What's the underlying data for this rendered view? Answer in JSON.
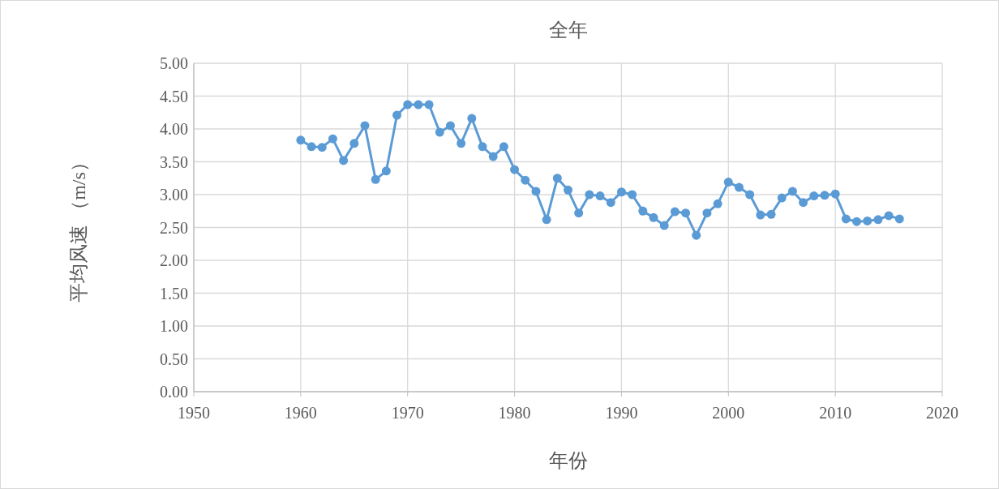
{
  "chart_data": {
    "type": "line",
    "title": "全年",
    "xlabel": "年份",
    "ylabel": "平均风速 （m/s）",
    "x": [
      1960,
      1961,
      1962,
      1963,
      1964,
      1965,
      1966,
      1967,
      1968,
      1969,
      1970,
      1971,
      1972,
      1973,
      1974,
      1975,
      1976,
      1977,
      1978,
      1979,
      1980,
      1981,
      1982,
      1983,
      1984,
      1985,
      1986,
      1987,
      1988,
      1989,
      1990,
      1991,
      1992,
      1993,
      1994,
      1995,
      1996,
      1997,
      1998,
      1999,
      2000,
      2001,
      2002,
      2003,
      2004,
      2005,
      2006,
      2007,
      2008,
      2009,
      2010,
      2011,
      2012,
      2013,
      2014,
      2015,
      2016
    ],
    "series": [
      {
        "color": "#5b9bd5",
        "values": [
          3.83,
          3.73,
          3.72,
          3.85,
          3.52,
          3.78,
          4.05,
          3.23,
          3.36,
          4.21,
          4.37,
          4.37,
          4.37,
          3.95,
          4.05,
          3.78,
          4.16,
          3.73,
          3.58,
          3.73,
          3.38,
          3.22,
          3.05,
          2.62,
          3.25,
          3.07,
          2.72,
          3.0,
          2.98,
          2.88,
          3.04,
          3.0,
          2.75,
          2.65,
          2.53,
          2.74,
          2.72,
          2.38,
          2.72,
          2.86,
          3.19,
          3.11,
          3.0,
          2.69,
          2.7,
          2.95,
          3.05,
          2.88,
          2.98,
          2.99,
          3.01,
          2.63,
          2.59,
          2.6,
          2.62,
          2.68,
          2.63
        ]
      }
    ],
    "xlim": [
      1950,
      2020
    ],
    "xticks": [
      1950,
      1960,
      1970,
      1980,
      1990,
      2000,
      2010,
      2020
    ],
    "ylim": [
      0,
      5
    ],
    "yticks": [
      {
        "value": 0,
        "label": "0.00"
      },
      {
        "value": 0.5,
        "label": "0.50"
      },
      {
        "value": 1,
        "label": "1.00"
      },
      {
        "value": 1.5,
        "label": "1.50"
      },
      {
        "value": 2,
        "label": "2.00"
      },
      {
        "value": 2.5,
        "label": "2.50"
      },
      {
        "value": 3,
        "label": "3.00"
      },
      {
        "value": 3.5,
        "label": "3.50"
      },
      {
        "value": 4,
        "label": "4.00"
      },
      {
        "value": 4.5,
        "label": "4.50"
      },
      {
        "value": 5,
        "label": "5.00"
      }
    ],
    "grid": true,
    "marker": "circle",
    "line_style": "solid"
  }
}
